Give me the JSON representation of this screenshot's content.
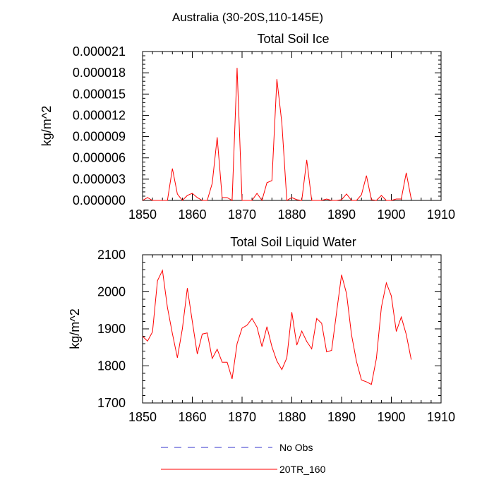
{
  "figure_title": "Australia (30-20S,110-145E)",
  "legend": [
    {
      "label": "No Obs",
      "color": "#0000cc",
      "style": "dashed"
    },
    {
      "label": "20TR_160",
      "color": "#ff0000",
      "style": "solid"
    }
  ],
  "chart_data": [
    {
      "type": "line",
      "title": "Total Soil Ice",
      "xlabel": "",
      "ylabel": "kg/m^2",
      "xlim": [
        1850,
        1910
      ],
      "ylim": [
        0,
        2.1e-05
      ],
      "xticks": [
        1850,
        1860,
        1870,
        1880,
        1890,
        1900,
        1910
      ],
      "xtick_labels": [
        "1850",
        "1860",
        "1870",
        "1880",
        "1890",
        "1900",
        "1910"
      ],
      "yticks": [
        0,
        3e-06,
        6e-06,
        9e-06,
        1.2e-05,
        1.5e-05,
        1.8e-05,
        2.1e-05
      ],
      "ytick_labels": [
        "0.000000",
        "0.000003",
        "0.000006",
        "0.000009",
        "0.000012",
        "0.000015",
        "0.000018",
        "0.000021"
      ],
      "series": [
        {
          "name": "20TR_160",
          "color": "#ff0000",
          "x": [
            1850,
            1851,
            1852,
            1853,
            1854,
            1855,
            1856,
            1857,
            1858,
            1859,
            1860,
            1861,
            1862,
            1863,
            1864,
            1865,
            1866,
            1867,
            1868,
            1869,
            1870,
            1871,
            1872,
            1873,
            1874,
            1875,
            1876,
            1877,
            1878,
            1879,
            1880,
            1881,
            1882,
            1883,
            1884,
            1885,
            1886,
            1887,
            1888,
            1889,
            1890,
            1891,
            1892,
            1893,
            1894,
            1895,
            1896,
            1897,
            1898,
            1899,
            1900,
            1901,
            1902,
            1903,
            1904
          ],
          "values": [
            0,
            4e-07,
            0,
            0,
            0,
            0,
            4.5e-06,
            9e-07,
            0,
            7e-07,
            1e-06,
            4e-07,
            0,
            0,
            2.4e-06,
            8.9e-06,
            4e-07,
            4e-07,
            0,
            1.87e-05,
            0,
            0,
            0,
            1e-06,
            0,
            2.5e-06,
            2.8e-06,
            1.71e-05,
            1.09e-05,
            0,
            4e-07,
            1e-07,
            0,
            5.7e-06,
            0,
            0,
            0,
            2e-07,
            0,
            0,
            1e-07,
            9e-07,
            0,
            0,
            8e-07,
            3.5e-06,
            1e-07,
            0,
            7e-07,
            0,
            0,
            2e-07,
            2e-07,
            3.9e-06,
            2e-07
          ]
        }
      ]
    },
    {
      "type": "line",
      "title": "Total Soil Liquid Water",
      "xlabel": "",
      "ylabel": "kg/m^2",
      "xlim": [
        1850,
        1910
      ],
      "ylim": [
        1700,
        2100
      ],
      "xticks": [
        1850,
        1860,
        1870,
        1880,
        1890,
        1900,
        1910
      ],
      "xtick_labels": [
        "1850",
        "1860",
        "1870",
        "1880",
        "1890",
        "1900",
        "1910"
      ],
      "yticks": [
        1700,
        1800,
        1900,
        2000,
        2100
      ],
      "ytick_labels": [
        "1700",
        "1800",
        "1900",
        "2000",
        "2100"
      ],
      "series": [
        {
          "name": "20TR_160",
          "color": "#ff0000",
          "x": [
            1850,
            1851,
            1852,
            1853,
            1854,
            1855,
            1856,
            1857,
            1858,
            1859,
            1860,
            1861,
            1862,
            1863,
            1864,
            1865,
            1866,
            1867,
            1868,
            1869,
            1870,
            1871,
            1872,
            1873,
            1874,
            1875,
            1876,
            1877,
            1878,
            1879,
            1880,
            1881,
            1882,
            1883,
            1884,
            1885,
            1886,
            1887,
            1888,
            1889,
            1890,
            1891,
            1892,
            1893,
            1894,
            1895,
            1896,
            1897,
            1898,
            1899,
            1900,
            1901,
            1902,
            1903,
            1904
          ],
          "values": [
            1880,
            1867,
            1892,
            2030,
            2058,
            1958,
            1887,
            1822,
            1900,
            2010,
            1920,
            1832,
            1886,
            1889,
            1820,
            1845,
            1810,
            1810,
            1765,
            1860,
            1902,
            1910,
            1928,
            1905,
            1852,
            1906,
            1852,
            1813,
            1790,
            1822,
            1945,
            1856,
            1894,
            1866,
            1846,
            1928,
            1915,
            1838,
            1842,
            1945,
            2046,
            1995,
            1884,
            1812,
            1762,
            1757,
            1750,
            1820,
            1958,
            2024,
            1989,
            1893,
            1932,
            1885,
            1817
          ]
        }
      ]
    }
  ]
}
